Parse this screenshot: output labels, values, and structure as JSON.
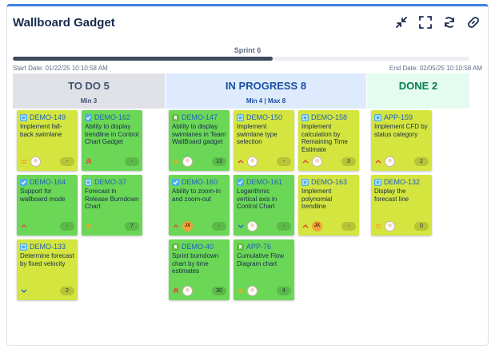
{
  "gadget": {
    "title": "Wallboard Gadget"
  },
  "toolbar": {
    "icons": [
      "collapse-icon",
      "fullscreen-icon",
      "refresh-icon",
      "link-icon"
    ]
  },
  "sprint": {
    "name": "Sprint 6",
    "progress": 0.57,
    "start": "Start Date: 01/22/25 10:10:58 AM",
    "end": "End Date: 02/05/25 10:10:58 AM"
  },
  "columns": [
    {
      "name": "TO DO 5",
      "limit": "Min 3"
    },
    {
      "name": "IN PROGRESS 8",
      "limit": "Min 4 | Max 8"
    },
    {
      "name": "DONE 2",
      "limit": ""
    }
  ],
  "colors": {
    "lime_card": "#d4e53f",
    "green_card": "#6bd756",
    "accent": "#3b82e0"
  },
  "cards": [
    {
      "key": "DEMO-149",
      "summary": "Implement fall-back swimlane",
      "type": "task",
      "priority": "medium",
      "avatar": "photo",
      "initials": "",
      "estimate": "-",
      "color": "lime"
    },
    {
      "key": "DEMO-162",
      "summary": "Ability to display trendline in Control Chart Gadget",
      "type": "subtask",
      "priority": "highest",
      "avatar": "none",
      "initials": "",
      "estimate": "-",
      "color": "green"
    },
    {
      "key": "DEMO-164",
      "summary": "Support for wallboard mode",
      "type": "subtask",
      "priority": "high",
      "avatar": "none",
      "initials": "",
      "estimate": "-",
      "color": "green"
    },
    {
      "key": "DEMO-37",
      "summary": "Forecast in Release Burndown Chart",
      "type": "task",
      "priority": "medium",
      "avatar": "none",
      "initials": "",
      "estimate": "7",
      "color": "green"
    },
    {
      "key": "DEMO-133",
      "summary": "Determine forecast by fixed velocity",
      "type": "task",
      "priority": "low",
      "avatar": "none",
      "initials": "",
      "estimate": "2",
      "color": "lime"
    },
    {
      "key": "DEMO-147",
      "summary": "Ability to display swimlanes in Team WallBoard gadget",
      "type": "story",
      "priority": "medium",
      "avatar": "photo",
      "initials": "",
      "estimate": "13",
      "color": "green"
    },
    {
      "key": "DEMO-150",
      "summary": "Implement swimlane type selection",
      "type": "task",
      "priority": "high",
      "avatar": "photo",
      "initials": "",
      "estimate": "-",
      "color": "lime"
    },
    {
      "key": "DEMO-158",
      "summary": "Implement calculation by Remaining Time Estimate",
      "type": "task",
      "priority": "high",
      "avatar": "photo",
      "initials": "",
      "estimate": "3",
      "color": "lime"
    },
    {
      "key": "DEMO-160",
      "summary": "Ability to zoom-in and zoom-out",
      "type": "subtask",
      "priority": "high",
      "avatar": "initials",
      "initials": "JX",
      "estimate": "-",
      "color": "green"
    },
    {
      "key": "DEMO-161",
      "summary": "Logarithmic vertical axis in Control Chart",
      "type": "subtask",
      "priority": "low",
      "avatar": "photo",
      "initials": "",
      "estimate": "-",
      "color": "green"
    },
    {
      "key": "DEMO-163",
      "summary": "Implement polynomial trendline",
      "type": "task",
      "priority": "high",
      "avatar": "initials",
      "initials": "JX",
      "estimate": "-",
      "color": "lime"
    },
    {
      "key": "DEMO-40",
      "summary": "Sprint burndown chart by time estimates",
      "type": "story",
      "priority": "highest",
      "avatar": "photo",
      "initials": "",
      "estimate": "30",
      "color": "green"
    },
    {
      "key": "APP-76",
      "summary": "Cumulative Flow Diagram chart",
      "type": "story",
      "priority": "medium",
      "avatar": "photo",
      "initials": "",
      "estimate": "4",
      "color": "green"
    },
    {
      "key": "APP-159",
      "summary": "Implement CFD by status category",
      "type": "task",
      "priority": "high",
      "avatar": "photo",
      "initials": "",
      "estimate": "2",
      "color": "lime"
    },
    {
      "key": "DEMO-132",
      "summary": "Display the forecast line",
      "type": "task",
      "priority": "medium",
      "avatar": "photo",
      "initials": "",
      "estimate": "0",
      "color": "lime"
    }
  ]
}
